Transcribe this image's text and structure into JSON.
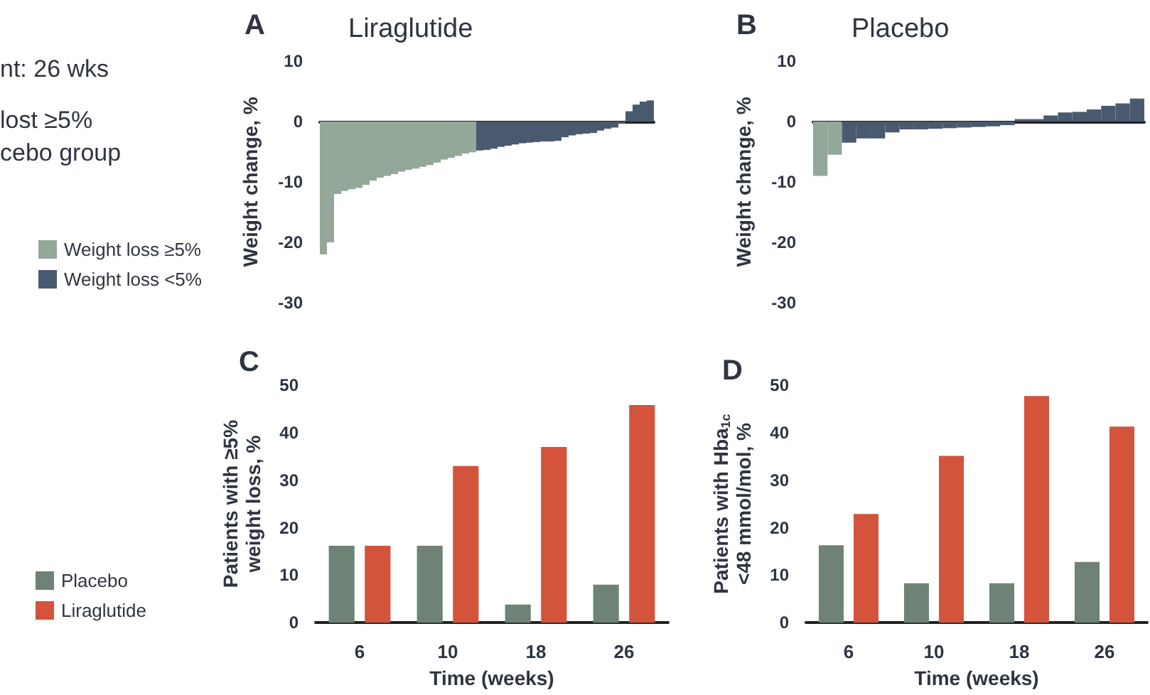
{
  "chart_data": [
    {
      "type": "bar",
      "title": "Liraglutide",
      "annotations": [
        "A",
        "nt: 26 wks",
        "lost ≥5%",
        "cebo group"
      ],
      "ylabel": "Weight change, %",
      "categories": [
        null,
        null,
        null,
        null,
        null,
        null,
        null,
        null,
        null,
        null,
        null,
        null,
        null,
        null,
        null,
        null,
        null,
        null,
        null,
        null,
        null,
        null,
        null,
        null,
        null,
        null,
        null,
        null,
        null,
        null,
        null,
        null,
        null,
        null,
        null,
        null,
        null,
        null,
        null,
        null,
        null,
        null,
        null,
        null,
        null,
        null,
        null
      ],
      "stacked": true,
      "legend": "left",
      "ylim": [
        -30,
        10
      ],
      "yticks": [
        -30,
        -20,
        -10,
        0,
        10
      ],
      "series": [
        {
          "name": "Weight loss ≥5%",
          "color": "#94a89a",
          "values": [
            -22,
            -20,
            -12,
            -11.5,
            -11.2,
            -11,
            -10.5,
            -9.8,
            -9.3,
            -9,
            -8.7,
            -8.3,
            -8,
            -7.8,
            -7.5,
            -7.2,
            -6.8,
            -6.3,
            -6,
            -5.7,
            -5.3,
            -5.1,
            null,
            null,
            null,
            null,
            null,
            null,
            null,
            null,
            null,
            null,
            null,
            null,
            null,
            null,
            null,
            null,
            null,
            null,
            null,
            null,
            null,
            null,
            null,
            null,
            null
          ]
        },
        {
          "name": "Weight loss <5%",
          "color": "#4a5a6e",
          "values": [
            null,
            null,
            null,
            null,
            null,
            null,
            null,
            null,
            null,
            null,
            null,
            null,
            null,
            null,
            null,
            null,
            null,
            null,
            null,
            null,
            null,
            null,
            -4.8,
            -4.7,
            -4.5,
            -4.2,
            -4,
            -3.8,
            -3.6,
            -3.5,
            -3.4,
            -3.3,
            -3.3,
            -3.2,
            -2.6,
            -2.3,
            -2.1,
            -2,
            -1.9,
            -1.5,
            -1.2,
            -1,
            -0.3,
            1.7,
            2.8,
            3.3,
            3.5
          ]
        }
      ]
    },
    {
      "type": "bar",
      "title": "Placebo",
      "annotations": [
        "B"
      ],
      "ylabel": "Weight change, %",
      "categories": [
        null,
        null,
        null,
        null,
        null,
        null,
        null,
        null,
        null,
        null,
        null,
        null,
        null,
        null,
        null,
        null,
        null,
        null,
        null,
        null,
        null,
        null,
        null
      ],
      "stacked": true,
      "ylim": [
        -30,
        10
      ],
      "yticks": [
        -30,
        -20,
        -10,
        0,
        10
      ],
      "series": [
        {
          "color": "#94a89a",
          "values": [
            -9,
            -5.5,
            null,
            null,
            null,
            null,
            null,
            null,
            null,
            null,
            null,
            null,
            null,
            null,
            null,
            null,
            null,
            null,
            null,
            null,
            null,
            null,
            null
          ]
        },
        {
          "color": "#4a5a6e",
          "values": [
            null,
            null,
            -3.5,
            -2.8,
            -2.8,
            -1.8,
            -1.3,
            -1.3,
            -1.2,
            -1.1,
            -1,
            -0.9,
            -0.8,
            -0.6,
            0.4,
            0.4,
            1,
            1.5,
            1.6,
            2,
            2.6,
            3,
            3.8
          ]
        }
      ]
    },
    {
      "type": "bar",
      "annotations": [
        "C"
      ],
      "ylabel": "Patients with ≥5%\nweight loss, %",
      "xlabel": "Time (weeks)",
      "categories": [
        "6",
        "10",
        "18",
        "26"
      ],
      "legend": "left",
      "ylim": [
        0,
        50
      ],
      "yticks": [
        0,
        10,
        20,
        30,
        40,
        50
      ],
      "series": [
        {
          "name": "Placebo",
          "color": "#6e8275",
          "values": [
            16.2,
            16.2,
            3.8,
            8
          ]
        },
        {
          "name": "Liraglutide",
          "color": "#d4533b",
          "values": [
            16.2,
            33,
            37,
            45.8
          ]
        }
      ]
    },
    {
      "type": "bar",
      "annotations": [
        "D"
      ],
      "ylabel": "Patients with Hba$_{1c}$\n<48 mmol/mol, %",
      "xlabel": "Time (weeks)",
      "categories": [
        "6",
        "10",
        "18",
        "26"
      ],
      "ylim": [
        0,
        50
      ],
      "yticks": [
        0,
        10,
        20,
        30,
        40,
        50
      ],
      "series": [
        {
          "color": "#6e8275",
          "values": [
            16.3,
            8.3,
            8.3,
            12.8
          ]
        },
        {
          "color": "#d4533b",
          "values": [
            22.9,
            35.1,
            47.7,
            41.3
          ]
        }
      ]
    }
  ]
}
